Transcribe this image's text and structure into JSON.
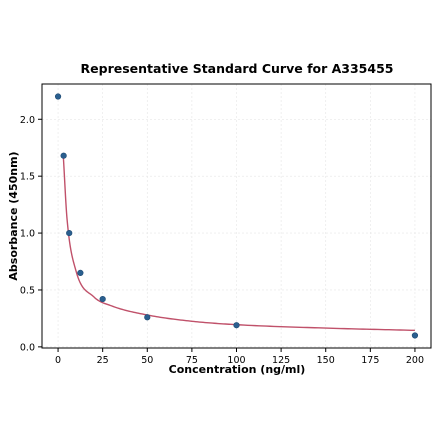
{
  "chart_data": {
    "type": "scatter",
    "title": "Representative Standard Curve for A335455",
    "xlabel": "Concentration (ng/ml)",
    "ylabel": "Absorbance (450nm)",
    "xlim": [
      -9,
      209
    ],
    "ylim": [
      -0.01,
      2.31
    ],
    "xticks": [
      0,
      25,
      50,
      75,
      100,
      125,
      150,
      175,
      200
    ],
    "yticks": [
      0.0,
      0.5,
      1.0,
      1.5,
      2.0
    ],
    "xtick_labels": [
      "0",
      "25",
      "50",
      "75",
      "100",
      "125",
      "150",
      "175",
      "200"
    ],
    "ytick_labels": [
      "0.0",
      "0.5",
      "1.0",
      "1.5",
      "2.0"
    ],
    "grid": true,
    "series": [
      {
        "kind": "points",
        "color": "#2a5f8f",
        "x": [
          0,
          3.125,
          6.25,
          12.5,
          25,
          50,
          100,
          200
        ],
        "y": [
          2.2,
          1.68,
          1.0,
          0.65,
          0.42,
          0.26,
          0.19,
          0.1
        ]
      },
      {
        "kind": "fit-line",
        "color": "#c0516a",
        "x": [
          3,
          5,
          10,
          20,
          30,
          50,
          75,
          100,
          150,
          200
        ],
        "y": [
          1.66,
          1.13,
          0.67,
          0.44,
          0.36,
          0.28,
          0.225,
          0.195,
          0.165,
          0.145
        ]
      }
    ]
  }
}
